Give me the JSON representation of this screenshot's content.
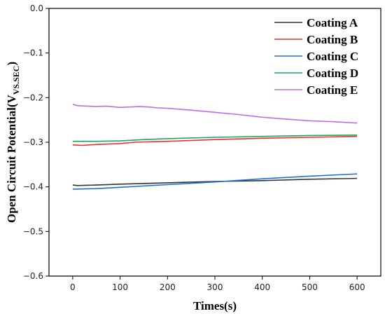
{
  "chart_data": {
    "type": "line",
    "title": "",
    "xlabel": "Times(s)",
    "ylabel": "Open Circuit Potential(V",
    "ylabel_subscript": "VS.SEC",
    "ylabel_suffix": ")",
    "xlim": [
      -50,
      650
    ],
    "ylim": [
      -0.6,
      0.0
    ],
    "x_ticks": [
      0,
      100,
      200,
      300,
      400,
      500,
      600
    ],
    "x_tick_labels": [
      "0",
      "100",
      "200",
      "300",
      "400",
      "500",
      "600"
    ],
    "y_ticks": [
      0.0,
      -0.1,
      -0.2,
      -0.3,
      -0.4,
      -0.5,
      -0.6
    ],
    "y_tick_labels": [
      "0.0",
      "−0.1",
      "−0.2",
      "−0.3",
      "−0.4",
      "−0.5",
      "−0.6"
    ],
    "grid": false,
    "legend_position": "top-right",
    "series": [
      {
        "name": "Coating A",
        "color": "#333333",
        "x": [
          0,
          10,
          50,
          100,
          200,
          300,
          400,
          500,
          600
        ],
        "y": [
          -0.396,
          -0.397,
          -0.396,
          -0.394,
          -0.391,
          -0.388,
          -0.386,
          -0.383,
          -0.381
        ]
      },
      {
        "name": "Coating B",
        "color": "#e8312a",
        "x": [
          0,
          20,
          50,
          100,
          130,
          200,
          300,
          400,
          500,
          600
        ],
        "y": [
          -0.306,
          -0.307,
          -0.305,
          -0.303,
          -0.3,
          -0.298,
          -0.294,
          -0.291,
          -0.289,
          -0.287
        ]
      },
      {
        "name": "Coating C",
        "color": "#1f6fd6",
        "x": [
          0,
          50,
          100,
          200,
          300,
          400,
          500,
          600
        ],
        "y": [
          -0.405,
          -0.404,
          -0.401,
          -0.395,
          -0.389,
          -0.382,
          -0.376,
          -0.371
        ]
      },
      {
        "name": "Coating D",
        "color": "#1fa463",
        "x": [
          0,
          50,
          100,
          150,
          200,
          300,
          400,
          500,
          600
        ],
        "y": [
          -0.298,
          -0.298,
          -0.297,
          -0.294,
          -0.292,
          -0.289,
          -0.287,
          -0.285,
          -0.284
        ]
      },
      {
        "name": "Coating E",
        "color": "#c26be8",
        "x": [
          0,
          10,
          30,
          50,
          70,
          90,
          100,
          120,
          140,
          160,
          180,
          200,
          250,
          300,
          350,
          400,
          450,
          500,
          550,
          600
        ],
        "y": [
          -0.215,
          -0.218,
          -0.219,
          -0.22,
          -0.219,
          -0.221,
          -0.222,
          -0.221,
          -0.22,
          -0.221,
          -0.223,
          -0.224,
          -0.228,
          -0.233,
          -0.238,
          -0.244,
          -0.248,
          -0.252,
          -0.254,
          -0.257
        ]
      }
    ]
  }
}
